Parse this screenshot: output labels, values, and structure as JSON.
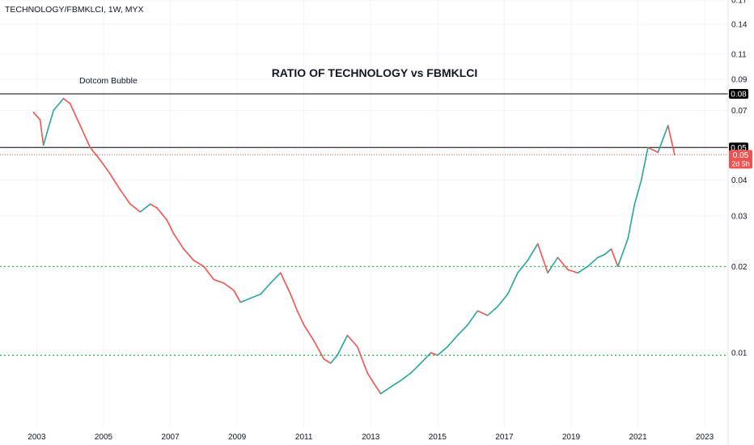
{
  "symbol_header": "TECHNOLOGY/FBMKLCI, 1W, MYX",
  "annotations": {
    "title": "RATIO OF TECHNOLOGY vs FBMKLCI",
    "bubble_label": "Dotcom Bubble"
  },
  "colors": {
    "up": "#26a69a",
    "down": "#ef5350",
    "level_line": "#000000",
    "support_line": "#22ab37",
    "price_line": "#ef5350",
    "grid": "#f0f3fa"
  },
  "chart_data": {
    "type": "line",
    "y_scale": "log",
    "ylim": [
      0.0055,
      0.17
    ],
    "xlim": [
      2001.9,
      2023.7
    ],
    "x_ticks": [
      "2003",
      "2005",
      "2007",
      "2009",
      "2011",
      "2013",
      "2015",
      "2017",
      "2019",
      "2021",
      "2023"
    ],
    "y_ticks": [
      "0.17",
      "0.14",
      "0.11",
      "0.09",
      "0.07",
      "0.04",
      "0.03",
      "0.02",
      "0.01"
    ],
    "x": [
      2002.9,
      2003.1,
      2003.2,
      2003.5,
      2003.8,
      2004.0,
      2004.3,
      2004.6,
      2004.9,
      2005.2,
      2005.5,
      2005.8,
      2006.1,
      2006.4,
      2006.6,
      2006.9,
      2007.1,
      2007.4,
      2007.7,
      2008.0,
      2008.3,
      2008.6,
      2008.9,
      2009.1,
      2009.4,
      2009.7,
      2010.0,
      2010.3,
      2010.6,
      2010.8,
      2011.0,
      2011.3,
      2011.6,
      2011.8,
      2012.0,
      2012.3,
      2012.6,
      2012.9,
      2013.1,
      2013.3,
      2013.6,
      2013.9,
      2014.2,
      2014.5,
      2014.8,
      2015.0,
      2015.3,
      2015.6,
      2015.9,
      2016.2,
      2016.5,
      2016.8,
      2017.1,
      2017.4,
      2017.7,
      2018.0,
      2018.3,
      2018.6,
      2018.9,
      2019.2,
      2019.5,
      2019.8,
      2020.0,
      2020.2,
      2020.4,
      2020.7,
      2020.9,
      2021.1,
      2021.3,
      2021.6,
      2021.9,
      2022.1
    ],
    "values": [
      0.069,
      0.065,
      0.053,
      0.07,
      0.077,
      0.074,
      0.062,
      0.052,
      0.047,
      0.042,
      0.037,
      0.033,
      0.031,
      0.033,
      0.032,
      0.029,
      0.026,
      0.023,
      0.021,
      0.02,
      0.018,
      0.0175,
      0.0165,
      0.015,
      0.0155,
      0.016,
      0.0175,
      0.019,
      0.016,
      0.014,
      0.0125,
      0.011,
      0.0095,
      0.0092,
      0.0098,
      0.0115,
      0.0105,
      0.0085,
      0.0078,
      0.0072,
      0.0076,
      0.008,
      0.0085,
      0.0092,
      0.01,
      0.0098,
      0.0105,
      0.0115,
      0.0125,
      0.014,
      0.0135,
      0.0145,
      0.016,
      0.019,
      0.021,
      0.024,
      0.019,
      0.0215,
      0.0195,
      0.019,
      0.02,
      0.0215,
      0.022,
      0.023,
      0.02,
      0.025,
      0.033,
      0.04,
      0.052,
      0.05,
      0.062,
      0.049
    ],
    "horizontal_lines": [
      {
        "value": 0.08,
        "label": "0.08",
        "style": "solid-black"
      },
      {
        "value": 0.052,
        "label": "0.05",
        "style": "solid-black"
      },
      {
        "value": 0.02,
        "style": "dotted-green"
      },
      {
        "value": 0.0098,
        "style": "dotted-green"
      }
    ],
    "last_price": {
      "value": 0.049,
      "label": "0.05",
      "countdown": "2d 5h"
    }
  }
}
